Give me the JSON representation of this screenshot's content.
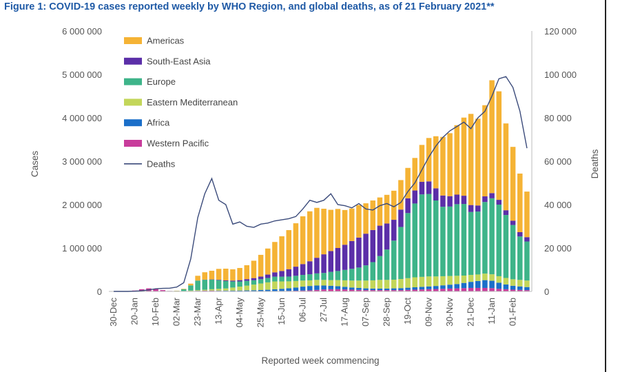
{
  "chart_data": {
    "type": "bar",
    "title": "Figure 1: COVID-19 cases reported weekly by WHO Region, and global deaths, as of 21 February 2021**",
    "xlabel": "Reported week commencing",
    "ylabel": "Cases",
    "y2label": "Deaths",
    "ylim": [
      0,
      6000000
    ],
    "y2lim": [
      0,
      120000
    ],
    "yticks": [
      "0",
      "1 000 000",
      "2 000 000",
      "3 000 000",
      "4 000 000",
      "5 000 000",
      "6 000 000"
    ],
    "y2ticks": [
      "0",
      "20 000",
      "40 000",
      "60 000",
      "80 000",
      "100 000",
      "120 000"
    ],
    "xtick_labels": [
      "30-Dec",
      "20-Jan",
      "10-Feb",
      "02-Mar",
      "23-Mar",
      "13-Apr",
      "04-May",
      "25-May",
      "15-Jun",
      "06-Jul",
      "27-Jul",
      "17-Aug",
      "07-Sep",
      "28-Sep",
      "19-Oct",
      "09-Nov",
      "30-Nov",
      "21-Dec",
      "11-Jan",
      "01-Feb"
    ],
    "xtick_every": 3,
    "weeks": [
      "2019-12-30",
      "2020-01-06",
      "2020-01-13",
      "2020-01-20",
      "2020-01-27",
      "2020-02-03",
      "2020-02-10",
      "2020-02-17",
      "2020-02-24",
      "2020-03-02",
      "2020-03-09",
      "2020-03-16",
      "2020-03-23",
      "2020-03-30",
      "2020-04-06",
      "2020-04-13",
      "2020-04-20",
      "2020-04-27",
      "2020-05-04",
      "2020-05-11",
      "2020-05-18",
      "2020-05-25",
      "2020-06-01",
      "2020-06-08",
      "2020-06-15",
      "2020-06-22",
      "2020-06-29",
      "2020-07-06",
      "2020-07-13",
      "2020-07-20",
      "2020-07-27",
      "2020-08-03",
      "2020-08-10",
      "2020-08-17",
      "2020-08-24",
      "2020-08-31",
      "2020-09-07",
      "2020-09-14",
      "2020-09-21",
      "2020-09-28",
      "2020-10-05",
      "2020-10-12",
      "2020-10-19",
      "2020-10-26",
      "2020-11-02",
      "2020-11-09",
      "2020-11-16",
      "2020-11-23",
      "2020-11-30",
      "2020-12-07",
      "2020-12-14",
      "2020-12-21",
      "2020-12-28",
      "2021-01-04",
      "2021-01-11",
      "2021-01-18",
      "2021-01-25",
      "2021-02-01",
      "2021-02-08",
      "2021-02-15"
    ],
    "series": [
      {
        "name": "Americas",
        "color": "#f5b335",
        "values": [
          0,
          0,
          0,
          0,
          0,
          0,
          0,
          0,
          0,
          5000,
          10000,
          40000,
          110000,
          170000,
          200000,
          250000,
          270000,
          260000,
          280000,
          320000,
          400000,
          500000,
          600000,
          700000,
          800000,
          900000,
          1000000,
          1100000,
          1150000,
          1150000,
          1050000,
          950000,
          900000,
          800000,
          750000,
          750000,
          700000,
          680000,
          650000,
          660000,
          670000,
          680000,
          700000,
          750000,
          850000,
          1000000,
          1200000,
          1350000,
          1450000,
          1600000,
          1800000,
          2100000,
          2000000,
          2100000,
          2600000,
          2500000,
          2000000,
          1700000,
          1350000,
          1050000
        ]
      },
      {
        "name": "South-East Asia",
        "color": "#5b2fa8",
        "values": [
          0,
          0,
          0,
          0,
          0,
          0,
          0,
          0,
          0,
          0,
          0,
          0,
          1000,
          3000,
          6000,
          10000,
          15000,
          20000,
          30000,
          40000,
          50000,
          60000,
          80000,
          100000,
          130000,
          170000,
          210000,
          250000,
          300000,
          360000,
          430000,
          480000,
          530000,
          580000,
          640000,
          690000,
          730000,
          740000,
          700000,
          600000,
          480000,
          400000,
          340000,
          300000,
          290000,
          290000,
          280000,
          260000,
          240000,
          220000,
          190000,
          160000,
          140000,
          130000,
          120000,
          110000,
          110000,
          100000,
          100000,
          100000
        ]
      },
      {
        "name": "Europe",
        "color": "#3eb489",
        "values": [
          0,
          0,
          0,
          0,
          0,
          0,
          0,
          0,
          500,
          5000,
          40000,
          120000,
          220000,
          230000,
          220000,
          200000,
          170000,
          140000,
          120000,
          110000,
          100000,
          100000,
          100000,
          110000,
          110000,
          110000,
          120000,
          130000,
          140000,
          150000,
          160000,
          190000,
          210000,
          240000,
          270000,
          300000,
          350000,
          420000,
          550000,
          700000,
          900000,
          1200000,
          1500000,
          1700000,
          1900000,
          1900000,
          1750000,
          1600000,
          1600000,
          1650000,
          1650000,
          1450000,
          1450000,
          1650000,
          1750000,
          1650000,
          1450000,
          1250000,
          1000000,
          900000
        ]
      },
      {
        "name": "Eastern Mediterranean",
        "color": "#c3d65a",
        "values": [
          0,
          0,
          0,
          0,
          0,
          0,
          0,
          0,
          200,
          2000,
          5000,
          10000,
          15000,
          20000,
          30000,
          40000,
          50000,
          70000,
          90000,
          110000,
          130000,
          150000,
          170000,
          180000,
          170000,
          160000,
          150000,
          140000,
          130000,
          130000,
          130000,
          130000,
          140000,
          150000,
          160000,
          170000,
          180000,
          190000,
          200000,
          200000,
          200000,
          210000,
          220000,
          230000,
          230000,
          230000,
          220000,
          210000,
          200000,
          190000,
          170000,
          160000,
          150000,
          150000,
          150000,
          150000,
          150000,
          150000,
          150000,
          150000
        ]
      },
      {
        "name": "Africa",
        "color": "#1b6fc9",
        "values": [
          0,
          0,
          0,
          0,
          0,
          0,
          0,
          0,
          0,
          0,
          500,
          1000,
          2000,
          3000,
          5000,
          7000,
          9000,
          11000,
          13000,
          16000,
          20000,
          25000,
          30000,
          40000,
          50000,
          60000,
          75000,
          90000,
          100000,
          100000,
          90000,
          80000,
          70000,
          60000,
          50000,
          45000,
          40000,
          35000,
          35000,
          35000,
          40000,
          45000,
          50000,
          55000,
          60000,
          65000,
          70000,
          80000,
          90000,
          100000,
          120000,
          140000,
          160000,
          180000,
          170000,
          140000,
          110000,
          90000,
          80000,
          70000
        ]
      },
      {
        "name": "Western Pacific",
        "color": "#c83c9b",
        "values": [
          600,
          1000,
          5000,
          20000,
          50000,
          70000,
          60000,
          30000,
          10000,
          5000,
          5000,
          8000,
          12000,
          15000,
          15000,
          12000,
          10000,
          8000,
          7000,
          7000,
          7000,
          7000,
          8000,
          9000,
          10000,
          12000,
          15000,
          20000,
          25000,
          35000,
          45000,
          50000,
          50000,
          45000,
          40000,
          35000,
          30000,
          30000,
          30000,
          30000,
          30000,
          30000,
          35000,
          40000,
          45000,
          50000,
          55000,
          60000,
          65000,
          70000,
          75000,
          80000,
          80000,
          80000,
          75000,
          60000,
          50000,
          40000,
          35000,
          30000
        ]
      }
    ],
    "line": {
      "name": "Deaths",
      "color": "#3a4a7a",
      "axis": "right",
      "values": [
        0,
        0,
        0,
        100,
        300,
        700,
        1200,
        1400,
        1500,
        2000,
        4000,
        15000,
        34000,
        45000,
        52000,
        42000,
        40000,
        31000,
        32000,
        30000,
        29500,
        31000,
        31500,
        32500,
        33000,
        33500,
        34500,
        38000,
        42000,
        41000,
        42000,
        45000,
        40000,
        39500,
        38500,
        40500,
        38000,
        37500,
        39500,
        40500,
        39000,
        41000,
        46000,
        50000,
        56000,
        62000,
        67000,
        71000,
        74000,
        76000,
        78000,
        75000,
        80000,
        83000,
        90000,
        98000,
        99000,
        94000,
        83000,
        66000
      ]
    }
  },
  "legend": {
    "items": [
      {
        "label": "Americas",
        "color": "#f5b335",
        "kind": "swatch"
      },
      {
        "label": "South-East Asia",
        "color": "#5b2fa8",
        "kind": "swatch"
      },
      {
        "label": "Europe",
        "color": "#3eb489",
        "kind": "swatch"
      },
      {
        "label": "Eastern Mediterranean",
        "color": "#c3d65a",
        "kind": "swatch"
      },
      {
        "label": "Africa",
        "color": "#1b6fc9",
        "kind": "swatch"
      },
      {
        "label": "Western Pacific",
        "color": "#c83c9b",
        "kind": "swatch"
      },
      {
        "label": "Deaths",
        "color": "#3a4a7a",
        "kind": "line"
      }
    ]
  }
}
